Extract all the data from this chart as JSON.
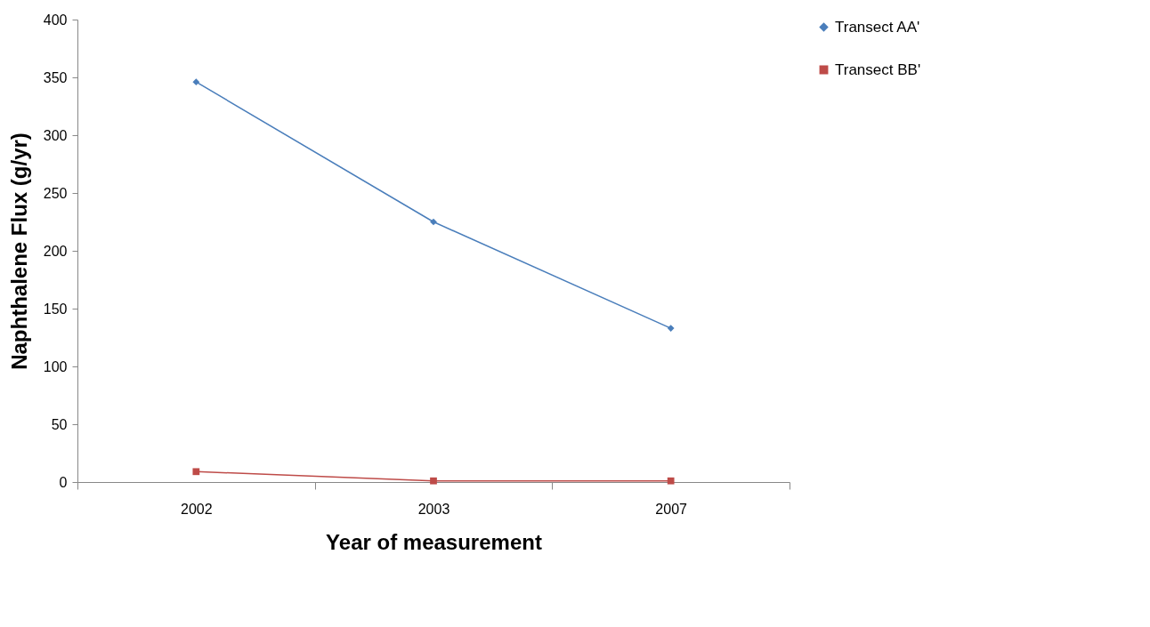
{
  "chart_data": {
    "type": "line",
    "xlabel": "Year of measurement",
    "ylabel": "Naphthalene Flux (g/yr)",
    "categories": [
      "2002",
      "2003",
      "2007"
    ],
    "series": [
      {
        "name": "Transect AA'",
        "color": "#4a7ebb",
        "marker": "diamond",
        "values": [
          346,
          225,
          133
        ]
      },
      {
        "name": "Transect BB'",
        "color": "#be4b48",
        "marker": "square",
        "values": [
          9,
          1,
          1
        ]
      }
    ],
    "ylim": [
      0,
      400
    ],
    "yticks": [
      0,
      50,
      100,
      150,
      200,
      250,
      300,
      350,
      400
    ],
    "grid": false,
    "legend": "right"
  }
}
